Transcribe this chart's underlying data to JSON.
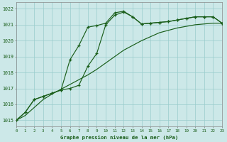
{
  "xlabel": "Graphe pression niveau de la mer (hPa)",
  "xlim": [
    0,
    23
  ],
  "ylim": [
    1014.6,
    1022.4
  ],
  "yticks": [
    1015,
    1016,
    1017,
    1018,
    1019,
    1020,
    1021,
    1022
  ],
  "xticks": [
    0,
    1,
    2,
    3,
    4,
    5,
    6,
    7,
    8,
    9,
    10,
    11,
    12,
    13,
    14,
    15,
    16,
    17,
    18,
    19,
    20,
    21,
    22,
    23
  ],
  "bg_color": "#cce8e8",
  "grid_color": "#99cccc",
  "line_color": "#1a5e1a",
  "series_marked_1": [
    1015.0,
    1015.5,
    1016.3,
    1016.5,
    1016.7,
    1016.9,
    1018.8,
    1019.7,
    1020.85,
    1020.95,
    1021.1,
    1021.75,
    1021.85,
    1021.5,
    1021.05,
    1021.1,
    1021.15,
    1021.2,
    1021.3,
    1021.4,
    1021.5,
    1021.5,
    1021.5,
    1021.1
  ],
  "series_marked_2": [
    1015.0,
    1015.5,
    1016.3,
    1016.5,
    1016.7,
    1016.9,
    1017.0,
    1017.2,
    1018.4,
    1019.2,
    1021.0,
    1021.6,
    1021.8,
    1021.5,
    1021.05,
    1021.1,
    1021.15,
    1021.2,
    1021.3,
    1021.4,
    1021.5,
    1021.5,
    1021.5,
    1021.1
  ],
  "series_smooth": [
    1015.0,
    1015.3,
    1015.8,
    1016.3,
    1016.65,
    1016.95,
    1017.25,
    1017.55,
    1017.85,
    1018.2,
    1018.6,
    1019.0,
    1019.4,
    1019.7,
    1020.0,
    1020.25,
    1020.5,
    1020.65,
    1020.8,
    1020.9,
    1021.0,
    1021.05,
    1021.1,
    1021.1
  ]
}
